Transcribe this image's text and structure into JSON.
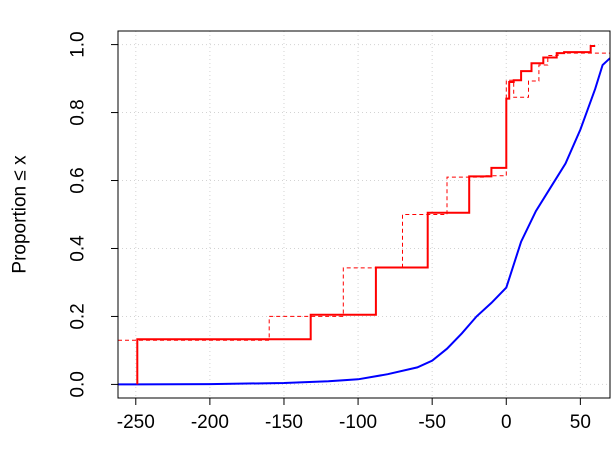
{
  "chart_data": {
    "type": "line",
    "title": "",
    "xlabel": "",
    "ylabel": "Proportion  ≤  x",
    "xlim": [
      -262,
      70
    ],
    "ylim": [
      -0.04,
      1.04
    ],
    "xticks": [
      -250,
      -200,
      -150,
      -100,
      -50,
      0,
      50
    ],
    "xtick_labels": [
      "-250",
      "-200",
      "-150",
      "-100",
      "-50",
      "0",
      "50"
    ],
    "yticks": [
      0.0,
      0.2,
      0.4,
      0.6,
      0.8,
      1.0
    ],
    "ytick_labels": [
      "0.0",
      "0.2",
      "0.4",
      "0.6",
      "0.8",
      "1.0"
    ],
    "grid": true,
    "series": [
      {
        "style": "step-solid",
        "color": "#ff0000",
        "x": [
          -249,
          -249,
          -132,
          -132,
          -88,
          -88,
          -53,
          -53,
          -25,
          -25,
          -10,
          -10,
          0,
          0,
          2,
          2,
          5,
          5,
          10,
          10,
          17,
          17,
          25,
          25,
          34,
          34,
          39,
          39,
          57,
          57,
          60
        ],
        "y": [
          0.0,
          0.133,
          0.133,
          0.205,
          0.205,
          0.344,
          0.344,
          0.505,
          0.505,
          0.612,
          0.612,
          0.637,
          0.637,
          0.841,
          0.841,
          0.89,
          0.89,
          0.895,
          0.895,
          0.922,
          0.922,
          0.945,
          0.945,
          0.962,
          0.962,
          0.975,
          0.975,
          0.978,
          0.978,
          0.996,
          0.996
        ]
      },
      {
        "style": "step-dashed",
        "color": "#ff0000",
        "x": [
          -262,
          -160,
          -160,
          -110,
          -110,
          -70,
          -70,
          -40,
          -40,
          -15,
          -15,
          0,
          0,
          5,
          5,
          15,
          15,
          22,
          22,
          28,
          28,
          35,
          35,
          70
        ],
        "y": [
          0.13,
          0.13,
          0.2,
          0.2,
          0.343,
          0.343,
          0.5,
          0.5,
          0.61,
          0.61,
          0.614,
          0.614,
          0.895,
          0.895,
          0.845,
          0.845,
          0.893,
          0.893,
          0.94,
          0.94,
          0.968,
          0.968,
          0.975,
          0.975
        ]
      },
      {
        "style": "solid",
        "color": "#0000ff",
        "x": [
          -262,
          -250,
          -200,
          -150,
          -120,
          -100,
          -80,
          -60,
          -50,
          -40,
          -30,
          -20,
          -10,
          0,
          10,
          20,
          30,
          40,
          50,
          55,
          60,
          65,
          70
        ],
        "y": [
          0.0,
          0.0,
          0.001,
          0.004,
          0.009,
          0.015,
          0.03,
          0.05,
          0.07,
          0.105,
          0.15,
          0.2,
          0.24,
          0.285,
          0.42,
          0.51,
          0.58,
          0.65,
          0.75,
          0.81,
          0.87,
          0.94,
          0.96
        ]
      }
    ]
  }
}
